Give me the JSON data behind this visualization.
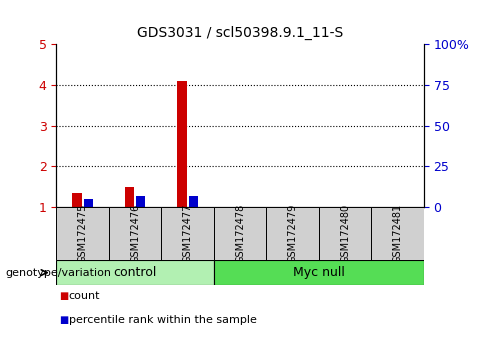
{
  "title": "GDS3031 / scl50398.9.1_11-S",
  "samples": [
    "GSM172475",
    "GSM172476",
    "GSM172477",
    "GSM172478",
    "GSM172479",
    "GSM172480",
    "GSM172481"
  ],
  "count_values": [
    1.35,
    1.5,
    4.1,
    1.0,
    1.0,
    1.0,
    1.0
  ],
  "percentile_values": [
    5.0,
    7.0,
    7.0,
    0.0,
    0.0,
    0.0,
    0.0
  ],
  "ylim_left": [
    1,
    5
  ],
  "yticks_left": [
    1,
    2,
    3,
    4,
    5
  ],
  "ytick_labels_left": [
    "1",
    "2",
    "3",
    "4",
    "5"
  ],
  "yticks_right": [
    0,
    25,
    50,
    75,
    100
  ],
  "ytick_labels_right": [
    "0",
    "25",
    "50",
    "75",
    "100%"
  ],
  "count_color": "#cc0000",
  "percentile_color": "#0000cc",
  "groups": [
    {
      "label": "control",
      "indices": [
        0,
        1,
        2
      ],
      "color": "#b2f0b2"
    },
    {
      "label": "Myc null",
      "indices": [
        3,
        4,
        5,
        6
      ],
      "color": "#55dd55"
    }
  ],
  "group_label_prefix": "genotype/variation",
  "legend_count_label": "count",
  "legend_percentile_label": "percentile rank within the sample",
  "tick_label_color_left": "#cc0000",
  "tick_label_color_right": "#0000cc",
  "background_color": "#ffffff",
  "sample_box_color": "#d0d0d0",
  "figsize": [
    4.9,
    3.54
  ],
  "dpi": 100
}
